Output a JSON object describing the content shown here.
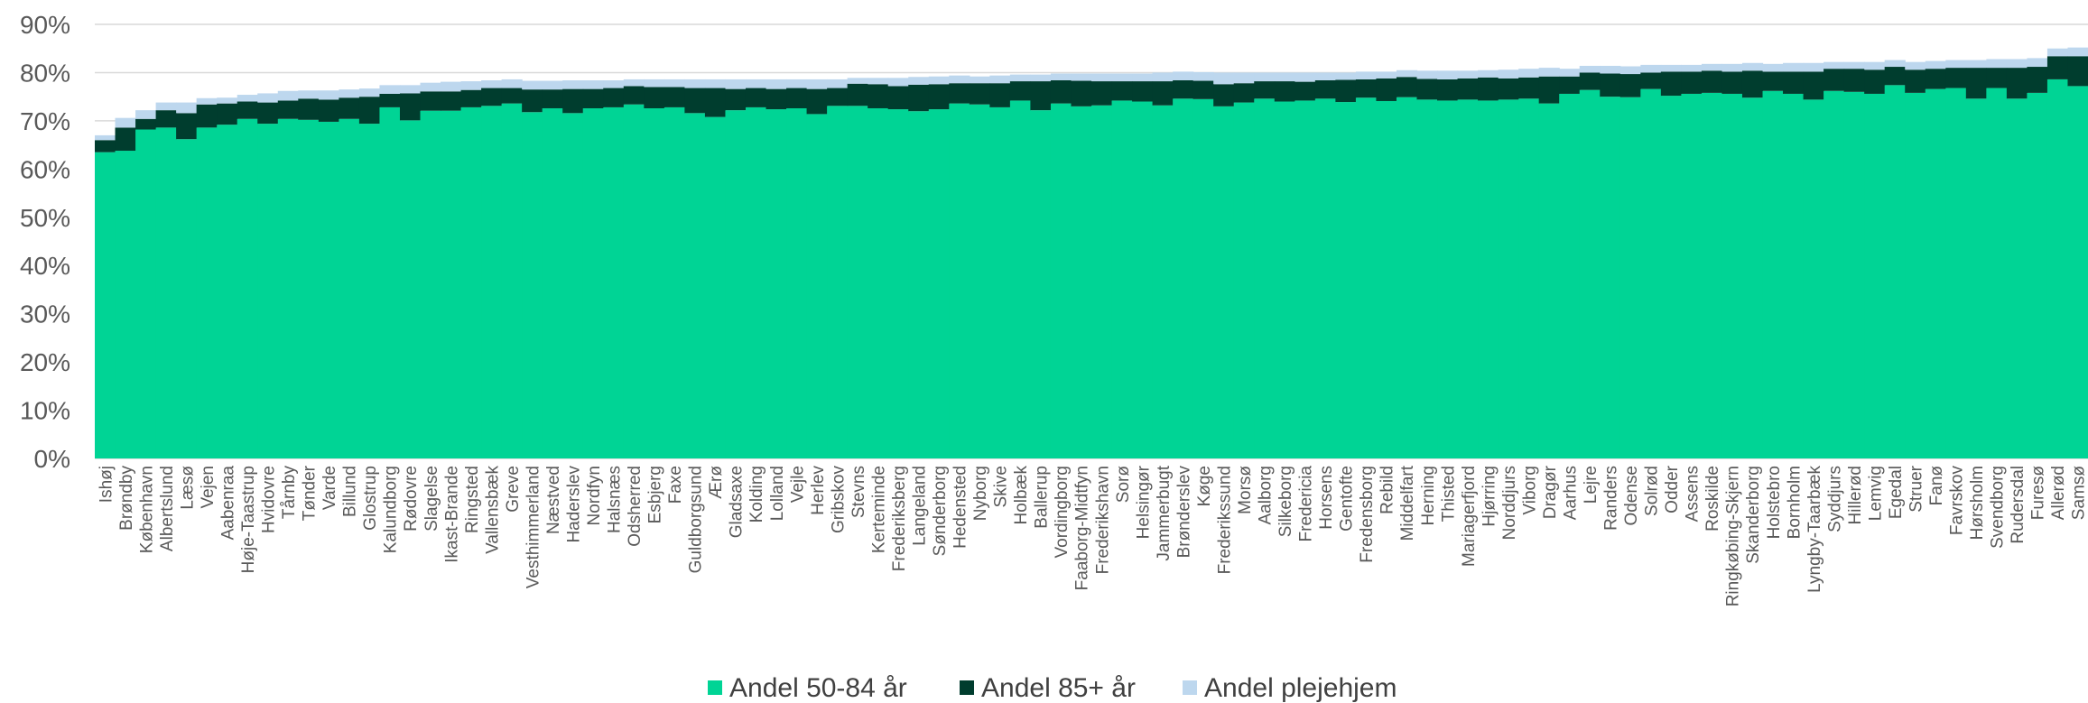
{
  "chart_data": {
    "type": "bar",
    "stacked": true,
    "ylim": [
      0,
      90
    ],
    "y_unit": "%",
    "yticks": [
      0,
      10,
      20,
      30,
      40,
      50,
      60,
      70,
      80,
      90
    ],
    "ytick_labels": [
      "0%",
      "10%",
      "20%",
      "30%",
      "40%",
      "50%",
      "60%",
      "70%",
      "80%",
      "90%"
    ],
    "grid": "horizontal",
    "legend_position": "bottom",
    "categories": [
      "Ishøj",
      "Brøndby",
      "København",
      "Albertslund",
      "Læsø",
      "Vejen",
      "Aabenraa",
      "Høje-Taastrup",
      "Hvidovre",
      "Tårnby",
      "Tønder",
      "Varde",
      "Billund",
      "Glostrup",
      "Kalundborg",
      "Rødovre",
      "Slagelse",
      "Ikast-Brande",
      "Ringsted",
      "Vallensbæk",
      "Greve",
      "Vesthimmerland",
      "Næstved",
      "Haderslev",
      "Nordfyn",
      "Halsnæs",
      "Odsherred",
      "Esbjerg",
      "Faxe",
      "Guldborgsund",
      "Ærø",
      "Gladsaxe",
      "Kolding",
      "Lolland",
      "Vejle",
      "Herlev",
      "Gribskov",
      "Stevns",
      "Kerteminde",
      "Frederiksberg",
      "Langeland",
      "Sønderborg",
      "Hedensted",
      "Nyborg",
      "Skive",
      "Holbæk",
      "Ballerup",
      "Vordingborg",
      "Faaborg-Midtfyn",
      "Frederikshavn",
      "Sorø",
      "Helsingør",
      "Jammerbugt",
      "Brønderslev",
      "Køge",
      "Frederikssund",
      "Morsø",
      "Aalborg",
      "Silkeborg",
      "Fredericia",
      "Horsens",
      "Gentofte",
      "Fredensborg",
      "Rebild",
      "Middelfart",
      "Herning",
      "Thisted",
      "Mariagerfjord",
      "Hjørring",
      "Norddjurs",
      "Viborg",
      "Dragør",
      "Aarhus",
      "Lejre",
      "Randers",
      "Odense",
      "Solrød",
      "Odder",
      "Assens",
      "Roskilde",
      "Ringkøbing-Skjern",
      "Skanderborg",
      "Holstebro",
      "Bornholm",
      "Lyngby-Taarbæk",
      "Syddjurs",
      "Hillerød",
      "Lemvig",
      "Egedal",
      "Struer",
      "Fanø",
      "Favrskov",
      "Hørsholm",
      "Svendborg",
      "Rudersdal",
      "Furesø",
      "Allerød",
      "Samsø"
    ],
    "series": [
      {
        "name": "Andel 50-84 år",
        "color": "#00D495",
        "values": [
          63.5,
          63.8,
          68.2,
          68.6,
          66.2,
          68.6,
          69.2,
          70.4,
          69.4,
          70.4,
          70.2,
          69.8,
          70.4,
          69.4,
          72.8,
          70.1,
          72.1,
          72.1,
          72.8,
          73.1,
          73.6,
          71.8,
          72.6,
          71.6,
          72.6,
          72.8,
          73.4,
          72.6,
          72.8,
          71.6,
          70.8,
          72.2,
          72.8,
          72.4,
          72.6,
          71.4,
          73.1,
          73.1,
          72.6,
          72.4,
          72.0,
          72.4,
          73.6,
          73.4,
          72.8,
          74.2,
          72.2,
          73.6,
          73.0,
          73.2,
          74.2,
          74.0,
          73.2,
          74.6,
          74.5,
          73.0,
          73.8,
          74.6,
          74.0,
          74.2,
          74.6,
          73.9,
          74.8,
          74.1,
          74.9,
          74.4,
          74.2,
          74.4,
          74.2,
          74.4,
          74.6,
          73.6,
          75.6,
          76.4,
          75.0,
          74.9,
          76.6,
          75.2,
          75.6,
          75.8,
          75.6,
          74.8,
          76.2,
          75.6,
          74.4,
          76.2,
          76.0,
          75.6,
          77.4,
          75.8,
          76.6,
          76.8,
          74.6,
          76.8,
          74.6,
          75.8,
          78.6,
          77.2
        ],
        "values_approximate": true
      },
      {
        "name": "Andel 85+ år",
        "color": "#003D2E",
        "values": [
          2.5,
          4.8,
          2.2,
          3.6,
          5.4,
          4.8,
          4.4,
          3.6,
          4.4,
          3.8,
          4.4,
          4.6,
          4.4,
          5.6,
          2.8,
          5.6,
          4.0,
          4.0,
          3.6,
          3.7,
          3.2,
          4.7,
          3.9,
          5.0,
          4.0,
          4.0,
          3.8,
          4.4,
          4.2,
          5.2,
          6.0,
          4.4,
          4.0,
          4.2,
          4.2,
          5.2,
          3.7,
          4.6,
          5.0,
          4.8,
          5.5,
          5.2,
          4.2,
          4.4,
          5.0,
          4.0,
          6.0,
          4.8,
          5.3,
          5.0,
          4.0,
          4.2,
          5.0,
          3.8,
          3.8,
          4.6,
          4.0,
          3.6,
          4.2,
          3.9,
          3.8,
          4.6,
          3.8,
          4.7,
          4.2,
          4.3,
          4.4,
          4.4,
          4.8,
          4.4,
          4.4,
          5.6,
          3.6,
          3.6,
          4.8,
          4.8,
          3.4,
          5.0,
          4.6,
          4.6,
          4.6,
          5.6,
          4.0,
          4.6,
          5.8,
          4.6,
          4.8,
          5.0,
          3.8,
          4.8,
          4.2,
          4.2,
          6.4,
          4.2,
          6.4,
          5.4,
          4.8,
          6.2
        ],
        "values_approximate": true
      },
      {
        "name": "Andel plejehjem",
        "color": "#BDD7EE",
        "values": [
          1.0,
          2.0,
          1.8,
          1.6,
          2.2,
          1.3,
          1.2,
          1.4,
          1.9,
          2.0,
          1.7,
          1.9,
          1.7,
          1.7,
          1.8,
          1.7,
          1.8,
          2.0,
          1.8,
          1.6,
          1.8,
          1.8,
          1.8,
          1.8,
          1.8,
          1.6,
          1.4,
          1.6,
          1.6,
          1.8,
          1.8,
          2.0,
          1.8,
          2.0,
          1.8,
          2.0,
          1.8,
          1.2,
          1.3,
          1.7,
          1.6,
          1.6,
          1.6,
          1.4,
          1.6,
          1.4,
          1.4,
          1.4,
          1.5,
          1.6,
          1.6,
          1.6,
          1.8,
          1.8,
          1.8,
          2.4,
          2.2,
          1.8,
          1.8,
          1.9,
          1.6,
          1.5,
          1.6,
          1.4,
          1.4,
          1.7,
          1.8,
          1.6,
          1.5,
          1.8,
          1.8,
          1.8,
          1.6,
          1.4,
          1.6,
          1.6,
          1.6,
          1.4,
          1.4,
          1.4,
          1.6,
          1.6,
          1.6,
          1.8,
          1.8,
          1.4,
          1.4,
          1.6,
          1.4,
          1.6,
          1.6,
          1.6,
          1.6,
          1.8,
          1.8,
          1.8,
          1.6,
          1.8
        ],
        "values_approximate": true
      }
    ]
  }
}
